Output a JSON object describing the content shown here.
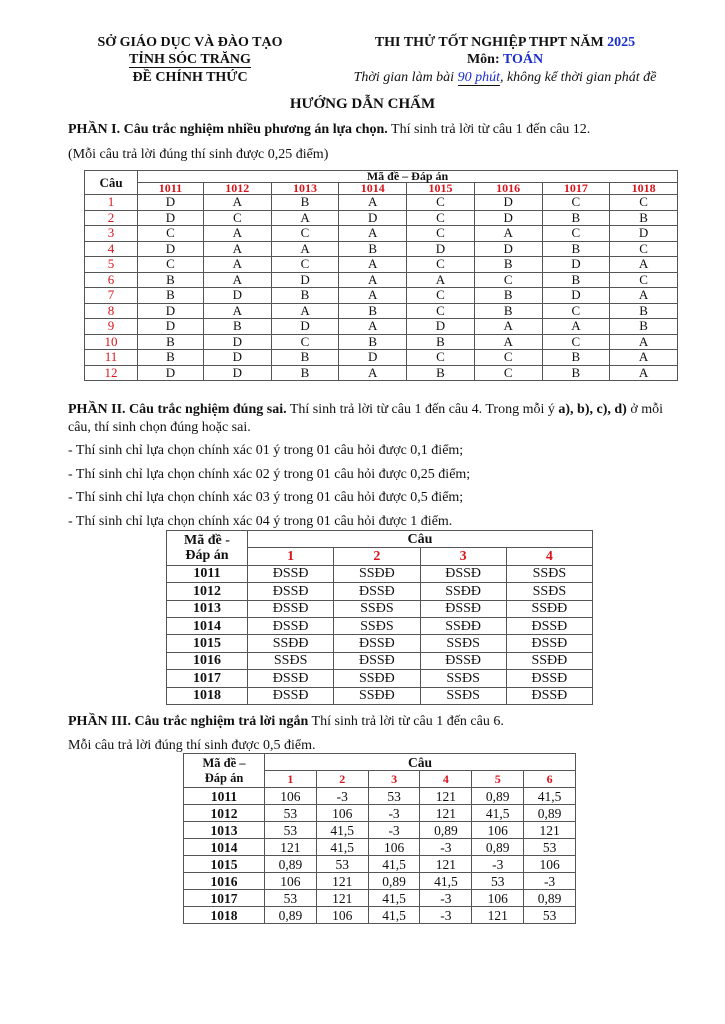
{
  "header": {
    "left": [
      "SỞ GIÁO DỤC VÀ ĐÀO TẠO",
      "TỈNH SÓC TRĂNG",
      "ĐỀ CHÍNH THỨC"
    ],
    "exam_title": "THI THỬ TỐT NGHIỆP THPT NĂM ",
    "exam_year": "2025",
    "subject_label": "Môn: ",
    "subject": "TOÁN",
    "time_pre": "Thời gian làm bài ",
    "time_val": "90 phút",
    "time_post": ", không kể thời gian phát đề"
  },
  "title": "HƯỚNG DẪN CHẤM",
  "part1": {
    "heading": "PHẦN I. Câu trắc nghiệm nhiều phương án lựa chọn.",
    "text": " Thí sinh trả lời từ câu 1 đến câu 12.",
    "note": "(Mỗi câu trả lời đúng thí sinh được 0,25 điểm)",
    "table": {
      "corner": "Câu",
      "group": "Mã đề – Đáp án",
      "codes": [
        "1011",
        "1012",
        "1013",
        "1014",
        "1015",
        "1016",
        "1017",
        "1018"
      ],
      "rows": [
        [
          "1",
          "D",
          "A",
          "B",
          "A",
          "C",
          "D",
          "C",
          "C"
        ],
        [
          "2",
          "D",
          "C",
          "A",
          "D",
          "C",
          "D",
          "B",
          "B"
        ],
        [
          "3",
          "C",
          "A",
          "C",
          "A",
          "C",
          "A",
          "C",
          "D"
        ],
        [
          "4",
          "D",
          "A",
          "A",
          "B",
          "D",
          "D",
          "B",
          "C"
        ],
        [
          "5",
          "C",
          "A",
          "C",
          "A",
          "C",
          "B",
          "D",
          "A"
        ],
        [
          "6",
          "B",
          "A",
          "D",
          "A",
          "A",
          "C",
          "B",
          "C"
        ],
        [
          "7",
          "B",
          "D",
          "B",
          "A",
          "C",
          "B",
          "D",
          "A"
        ],
        [
          "8",
          "D",
          "A",
          "A",
          "B",
          "C",
          "B",
          "C",
          "B"
        ],
        [
          "9",
          "D",
          "B",
          "D",
          "A",
          "D",
          "A",
          "A",
          "B"
        ],
        [
          "10",
          "B",
          "D",
          "C",
          "B",
          "B",
          "A",
          "C",
          "A"
        ],
        [
          "11",
          "B",
          "D",
          "B",
          "D",
          "C",
          "C",
          "B",
          "A"
        ],
        [
          "12",
          "D",
          "D",
          "B",
          "A",
          "B",
          "C",
          "B",
          "A"
        ]
      ]
    }
  },
  "part2": {
    "heading": "PHẦN II. Câu trắc nghiệm đúng sai.",
    "text1": " Thí sinh trả lời từ câu 1 đến câu 4. Trong mỗi ý ",
    "opts": "a), b), c), d)",
    "text2": " ở mỗi",
    "line2": "câu, thí sinh chọn đúng hoặc sai.",
    "rules": [
      "- Thí sinh chỉ lựa chọn chính xác 01 ý trong 01 câu hỏi được 0,1 điểm;",
      "- Thí sinh chỉ lựa chọn chính xác 02 ý trong 01 câu hỏi được 0,25 điểm;",
      "- Thí sinh chỉ lựa chọn chính xác 03 ý trong 01 câu hỏi được 0,5 điểm;",
      "- Thí sinh chỉ lựa chọn chính xác 04 ý trong 01 câu hỏi được 1 điểm."
    ],
    "table": {
      "corner": [
        "Mã đề -",
        "Đáp án"
      ],
      "group": "Câu",
      "questions": [
        "1",
        "2",
        "3",
        "4"
      ],
      "rows": [
        [
          "1011",
          "ĐSSĐ",
          "SSĐĐ",
          "ĐSSĐ",
          "SSĐS"
        ],
        [
          "1012",
          "ĐSSĐ",
          "ĐSSĐ",
          "SSĐĐ",
          "SSĐS"
        ],
        [
          "1013",
          "ĐSSĐ",
          "SSĐS",
          "ĐSSĐ",
          "SSĐĐ"
        ],
        [
          "1014",
          "ĐSSĐ",
          "SSĐS",
          "SSĐĐ",
          "ĐSSĐ"
        ],
        [
          "1015",
          "SSĐĐ",
          "ĐSSĐ",
          "SSĐS",
          "ĐSSĐ"
        ],
        [
          "1016",
          "SSĐS",
          "ĐSSĐ",
          "ĐSSĐ",
          "SSĐĐ"
        ],
        [
          "1017",
          "ĐSSĐ",
          "SSĐĐ",
          "SSĐS",
          "ĐSSĐ"
        ],
        [
          "1018",
          "ĐSSĐ",
          "SSĐĐ",
          "SSĐS",
          "ĐSSĐ"
        ]
      ]
    }
  },
  "part3": {
    "heading": "PHẦN III. Câu trắc nghiệm trả lời ngắn",
    "text": " Thí sinh trả lời từ câu 1 đến câu 6.",
    "note": "Mỗi câu trả lời đúng thí sinh được 0,5 điểm.",
    "table": {
      "corner": [
        "Mã đề –",
        "Đáp án"
      ],
      "group": "Câu",
      "questions": [
        "1",
        "2",
        "3",
        "4",
        "5",
        "6"
      ],
      "rows": [
        [
          "1011",
          "106",
          "-3",
          "53",
          "121",
          "0,89",
          "41,5"
        ],
        [
          "1012",
          "53",
          "106",
          "-3",
          "121",
          "41,5",
          "0,89"
        ],
        [
          "1013",
          "53",
          "41,5",
          "-3",
          "0,89",
          "106",
          "121"
        ],
        [
          "1014",
          "121",
          "41,5",
          "106",
          "-3",
          "0,89",
          "53"
        ],
        [
          "1015",
          "0,89",
          "53",
          "41,5",
          "121",
          "-3",
          "106"
        ],
        [
          "1016",
          "106",
          "121",
          "0,89",
          "41,5",
          "53",
          "-3"
        ],
        [
          "1017",
          "53",
          "121",
          "41,5",
          "-3",
          "106",
          "0,89"
        ],
        [
          "1018",
          "0,89",
          "106",
          "41,5",
          "-3",
          "121",
          "53"
        ]
      ]
    }
  },
  "colors": {
    "accent_red": "#d8141c",
    "accent_blue": "#1a2fd0"
  }
}
